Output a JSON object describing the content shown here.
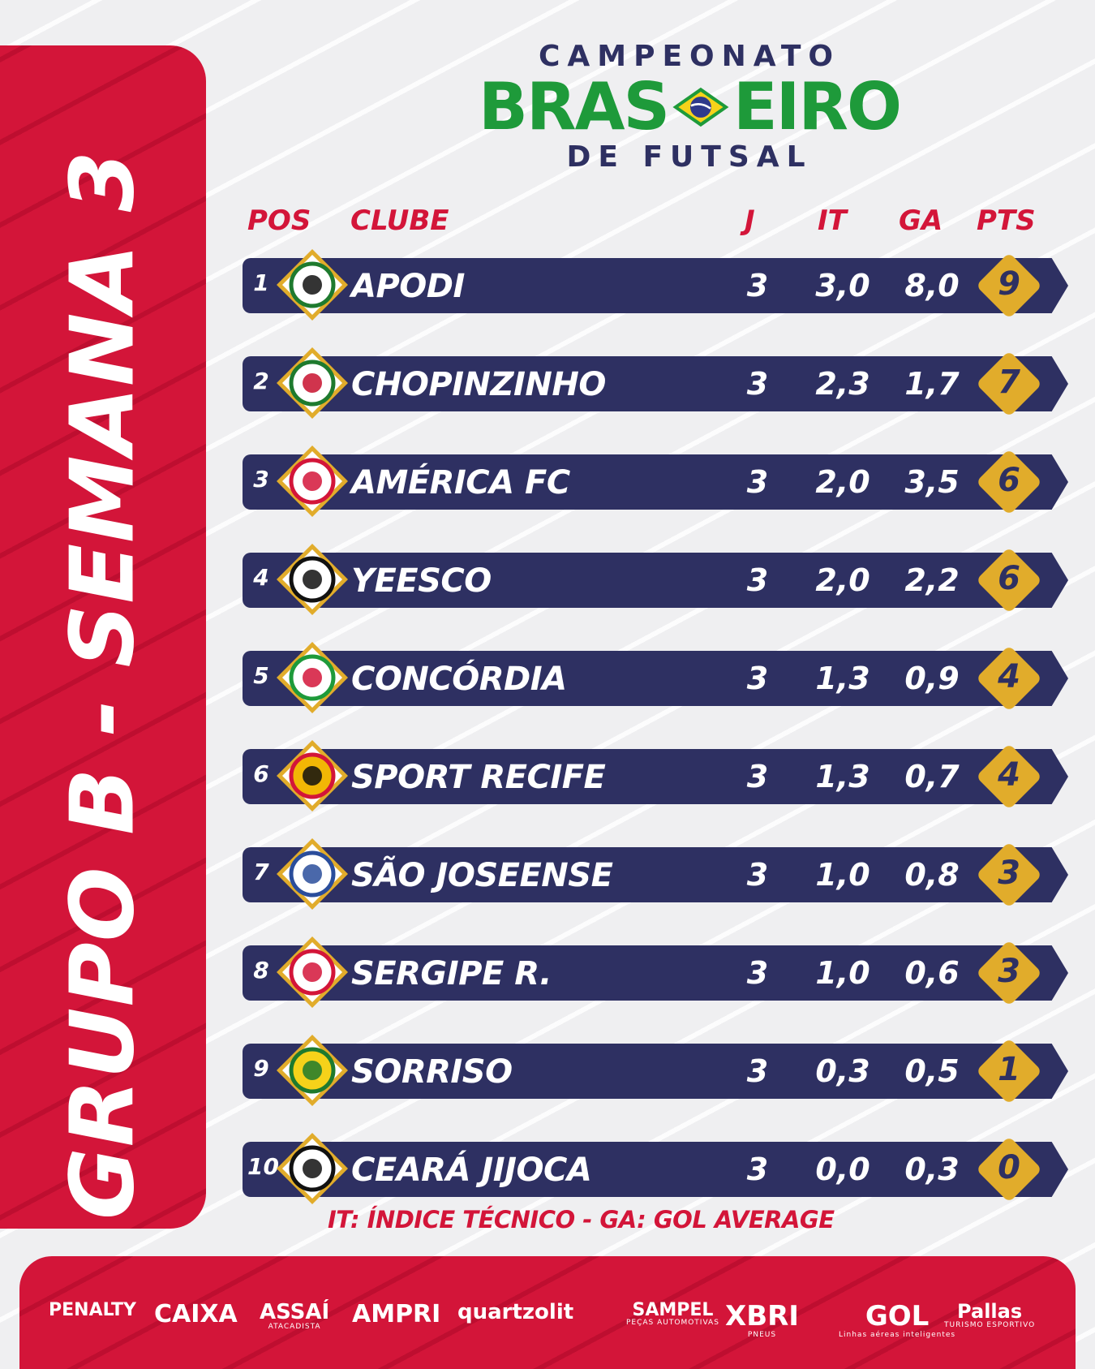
{
  "logo": {
    "top": "CAMPEONATO",
    "mid_left": "BRAS",
    "mid_right": "EIRO",
    "bottom": "DE FUTSAL"
  },
  "side_title": "GRUPO B - SEMANA 3",
  "headers": {
    "pos": "POS",
    "clube": "CLUBE",
    "j": "J",
    "it": "IT",
    "ga": "GA",
    "pts": "PTS"
  },
  "standings": [
    {
      "pos": "1",
      "club": "APODI",
      "j": "3",
      "it": "3,0",
      "ga": "8,0",
      "pts": "9",
      "crest": "apodi-crest-icon"
    },
    {
      "pos": "2",
      "club": "CHOPINZINHO",
      "j": "3",
      "it": "2,3",
      "ga": "1,7",
      "pts": "7",
      "crest": "acel-crest-icon"
    },
    {
      "pos": "3",
      "club": "AMÉRICA FC",
      "j": "3",
      "it": "2,0",
      "ga": "3,5",
      "pts": "6",
      "crest": "america-crest-icon"
    },
    {
      "pos": "4",
      "club": "YEESCO",
      "j": "3",
      "it": "2,0",
      "ga": "2,2",
      "pts": "6",
      "crest": "yeesco-crest-icon"
    },
    {
      "pos": "5",
      "club": "CONCÓRDIA",
      "j": "3",
      "it": "1,3",
      "ga": "0,9",
      "pts": "4",
      "crest": "concordia-crest-icon"
    },
    {
      "pos": "6",
      "club": "SPORT RECIFE",
      "j": "3",
      "it": "1,3",
      "ga": "0,7",
      "pts": "4",
      "crest": "sport-crest-icon"
    },
    {
      "pos": "7",
      "club": "SÃO JOSEENSE",
      "j": "3",
      "it": "1,0",
      "ga": "0,8",
      "pts": "3",
      "crest": "sao-joseense-crest-icon"
    },
    {
      "pos": "8",
      "club": "SERGIPE R.",
      "j": "3",
      "it": "1,0",
      "ga": "0,6",
      "pts": "3",
      "crest": "sergipe-crest-icon"
    },
    {
      "pos": "9",
      "club": "SORRISO",
      "j": "3",
      "it": "0,3",
      "ga": "0,5",
      "pts": "1",
      "crest": "sorriso-crest-icon"
    },
    {
      "pos": "10",
      "club": "CEARÁ JIJOCA",
      "j": "3",
      "it": "0,0",
      "ga": "0,3",
      "pts": "0",
      "crest": "ceara-crest-icon"
    }
  ],
  "legend": "IT: ÍNDICE TÉCNICO - GA: GOL AVERAGE",
  "sponsors": [
    {
      "name": "PENALTY",
      "sub": ""
    },
    {
      "name": "CAIXA",
      "sub": ""
    },
    {
      "name": "ASSAÍ",
      "sub": "ATACADISTA"
    },
    {
      "name": "AMPRI",
      "sub": ""
    },
    {
      "name": "quartzolit",
      "sub": ""
    },
    {
      "name": "SAMPEL",
      "sub": "PEÇAS AUTOMOTIVAS"
    },
    {
      "name": "XBRI",
      "sub": "PNEUS"
    },
    {
      "name": "GOL",
      "sub": "Linhas aéreas inteligentes"
    },
    {
      "name": "Pallas",
      "sub": "TURISMO ESPORTIVO"
    }
  ],
  "colors": {
    "red": "#d31539",
    "navy": "#2e3062",
    "gold": "#e1ac2b",
    "green": "#1e9a3a"
  }
}
